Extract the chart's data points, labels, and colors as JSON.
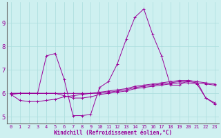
{
  "x": [
    0,
    1,
    2,
    3,
    4,
    5,
    6,
    7,
    8,
    9,
    10,
    11,
    12,
    13,
    14,
    15,
    16,
    17,
    18,
    19,
    20,
    21,
    22,
    23
  ],
  "line1": [
    6.0,
    6.0,
    6.0,
    6.0,
    6.0,
    6.0,
    6.0,
    6.0,
    6.0,
    6.0,
    6.05,
    6.1,
    6.15,
    6.2,
    6.3,
    6.35,
    6.4,
    6.45,
    6.5,
    6.55,
    6.55,
    6.5,
    6.45,
    6.4
  ],
  "line2": [
    5.95,
    5.7,
    5.65,
    5.65,
    5.7,
    5.75,
    5.85,
    5.9,
    5.95,
    6.0,
    6.0,
    6.05,
    6.1,
    6.15,
    6.25,
    6.3,
    6.35,
    6.4,
    6.45,
    6.5,
    6.5,
    6.45,
    6.4,
    6.35
  ],
  "line3": [
    5.95,
    6.0,
    6.0,
    6.0,
    6.0,
    6.0,
    5.9,
    5.8,
    5.8,
    5.85,
    5.95,
    6.0,
    6.05,
    6.1,
    6.2,
    6.25,
    6.3,
    6.35,
    6.4,
    6.45,
    6.45,
    6.4,
    5.8,
    5.6
  ],
  "line4": [
    6.0,
    6.0,
    6.0,
    6.0,
    7.6,
    7.7,
    6.6,
    5.05,
    5.05,
    5.1,
    6.25,
    6.5,
    7.25,
    8.3,
    9.25,
    9.6,
    8.5,
    7.6,
    6.35,
    6.35,
    6.55,
    6.5,
    5.8,
    5.55
  ],
  "bg_color": "#cef0f0",
  "grid_color": "#aadddd",
  "line_color": "#990099",
  "xlabel": "Windchill (Refroidissement éolien,°C)",
  "ylim": [
    4.7,
    9.9
  ],
  "xlim": [
    -0.5,
    23.5
  ],
  "yticks": [
    5,
    6,
    7,
    8,
    9
  ],
  "xticks": [
    0,
    1,
    2,
    3,
    4,
    5,
    6,
    7,
    8,
    9,
    10,
    11,
    12,
    13,
    14,
    15,
    16,
    17,
    18,
    19,
    20,
    21,
    22,
    23
  ],
  "font_size_tick": 5.0,
  "font_size_xlabel": 5.5,
  "marker": "+"
}
